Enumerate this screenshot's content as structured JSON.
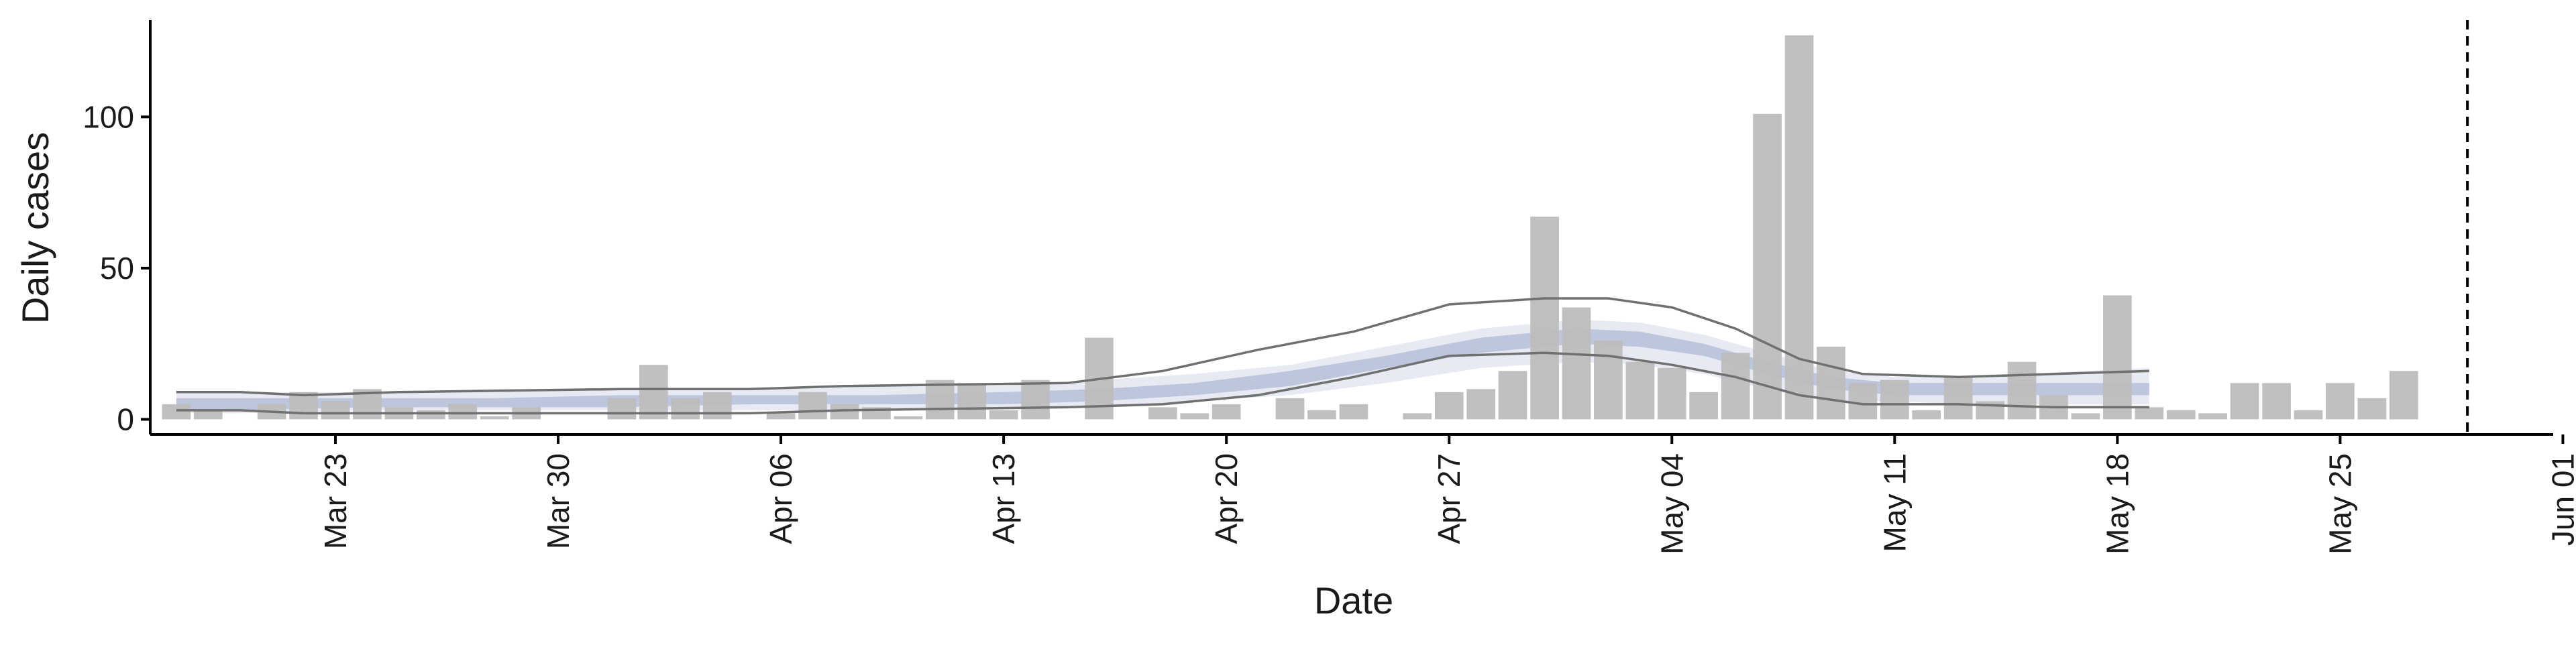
{
  "chart_data": {
    "type": "bar",
    "xlabel": "Date",
    "ylabel": "Daily cases",
    "x_start": "2020-03-20",
    "x_end": "2020-06-01",
    "ylim": [
      -5,
      132
    ],
    "yticks": [
      0,
      50,
      100
    ],
    "xticks": [
      {
        "date": "2020-03-23",
        "label": "Mar 23"
      },
      {
        "date": "2020-03-30",
        "label": "Mar 30"
      },
      {
        "date": "2020-04-06",
        "label": "Apr 06"
      },
      {
        "date": "2020-04-13",
        "label": "Apr 13"
      },
      {
        "date": "2020-04-20",
        "label": "Apr 20"
      },
      {
        "date": "2020-04-27",
        "label": "Apr 27"
      },
      {
        "date": "2020-05-04",
        "label": "May 04"
      },
      {
        "date": "2020-05-11",
        "label": "May 11"
      },
      {
        "date": "2020-05-18",
        "label": "May 18"
      },
      {
        "date": "2020-05-25",
        "label": "May 25"
      },
      {
        "date": "2020-06-01",
        "label": "Jun 01"
      }
    ],
    "bar_start_date": "2020-03-18",
    "daily_cases": [
      5,
      3,
      0,
      5,
      9,
      6,
      10,
      4,
      3,
      5,
      1,
      4,
      0,
      0,
      7,
      18,
      7,
      9,
      0,
      2,
      9,
      5,
      4,
      1,
      13,
      12,
      3,
      13,
      0,
      27,
      0,
      4,
      2,
      5,
      0,
      7,
      3,
      5,
      0,
      2,
      9,
      10,
      16,
      67,
      37,
      26,
      19,
      17,
      9,
      22,
      101,
      127,
      24,
      12,
      13,
      3,
      14,
      6,
      19,
      8,
      2,
      41,
      4,
      3,
      2,
      12,
      12,
      3,
      12,
      7,
      16
    ],
    "band_start_date": "2020-03-18",
    "band_end_date": "2020-05-19",
    "band_dates": [
      "2020-03-18",
      "2020-03-20",
      "2020-03-24",
      "2020-03-28",
      "2020-04-01",
      "2020-04-05",
      "2020-04-09",
      "2020-04-13",
      "2020-04-16",
      "2020-04-19",
      "2020-04-22",
      "2020-04-25",
      "2020-04-28",
      "2020-05-01",
      "2020-05-03",
      "2020-05-05",
      "2020-05-07",
      "2020-05-09",
      "2020-05-11",
      "2020-05-13",
      "2020-05-15",
      "2020-05-17",
      "2020-05-19"
    ],
    "outer_upper": [
      9,
      9,
      9,
      10,
      10,
      10,
      11,
      11,
      13,
      15,
      18,
      24,
      30,
      33,
      32,
      28,
      22,
      16,
      14,
      14,
      15,
      16,
      17
    ],
    "outer_lower": [
      2,
      2,
      3,
      3,
      3,
      3,
      3,
      4,
      4,
      6,
      8,
      12,
      17,
      19,
      18,
      15,
      10,
      6,
      6,
      5,
      5,
      5,
      5
    ],
    "inner_upper": [
      7,
      7,
      7,
      7,
      8,
      8,
      8,
      9,
      10,
      12,
      16,
      21,
      27,
      30,
      29,
      25,
      19,
      14,
      12,
      12,
      12,
      12,
      12
    ],
    "inner_lower": [
      3,
      3,
      4,
      4,
      4,
      5,
      5,
      5,
      6,
      8,
      11,
      17,
      22,
      25,
      24,
      21,
      15,
      10,
      8,
      8,
      8,
      8,
      8
    ],
    "line_upper_start_date": "2020-03-18",
    "line_upper_dates": [
      "2020-03-18",
      "2020-03-20",
      "2020-03-22",
      "2020-03-25",
      "2020-04-01",
      "2020-04-05",
      "2020-04-08",
      "2020-04-15",
      "2020-04-18",
      "2020-04-21",
      "2020-04-24",
      "2020-04-27",
      "2020-04-30",
      "2020-05-02",
      "2020-05-04",
      "2020-05-06",
      "2020-05-08",
      "2020-05-10",
      "2020-05-13",
      "2020-05-16",
      "2020-05-19"
    ],
    "line_upper": [
      9,
      9,
      8,
      9,
      10,
      10,
      11,
      12,
      16,
      23,
      29,
      38,
      40,
      40,
      37,
      30,
      20,
      15,
      14,
      15,
      16
    ],
    "line_lower_dates": [
      "2020-03-18",
      "2020-03-20",
      "2020-03-22",
      "2020-03-25",
      "2020-04-01",
      "2020-04-05",
      "2020-04-08",
      "2020-04-15",
      "2020-04-18",
      "2020-04-21",
      "2020-04-24",
      "2020-04-27",
      "2020-04-30",
      "2020-05-02",
      "2020-05-04",
      "2020-05-06",
      "2020-05-08",
      "2020-05-10",
      "2020-05-13",
      "2020-05-16",
      "2020-05-19"
    ],
    "line_lower": [
      3,
      3,
      2,
      2,
      2,
      2,
      3,
      4,
      5,
      8,
      14,
      21,
      22,
      21,
      18,
      14,
      8,
      5,
      5,
      4,
      4
    ],
    "vline_date": "2020-05-29",
    "grid": false,
    "colors": {
      "bars": "#bdbdbd",
      "outer_band": "#e6e8f2",
      "inner_band": "#b8c2d9",
      "lines": "#707070",
      "axis": "#000000",
      "vline": "#000000"
    }
  }
}
